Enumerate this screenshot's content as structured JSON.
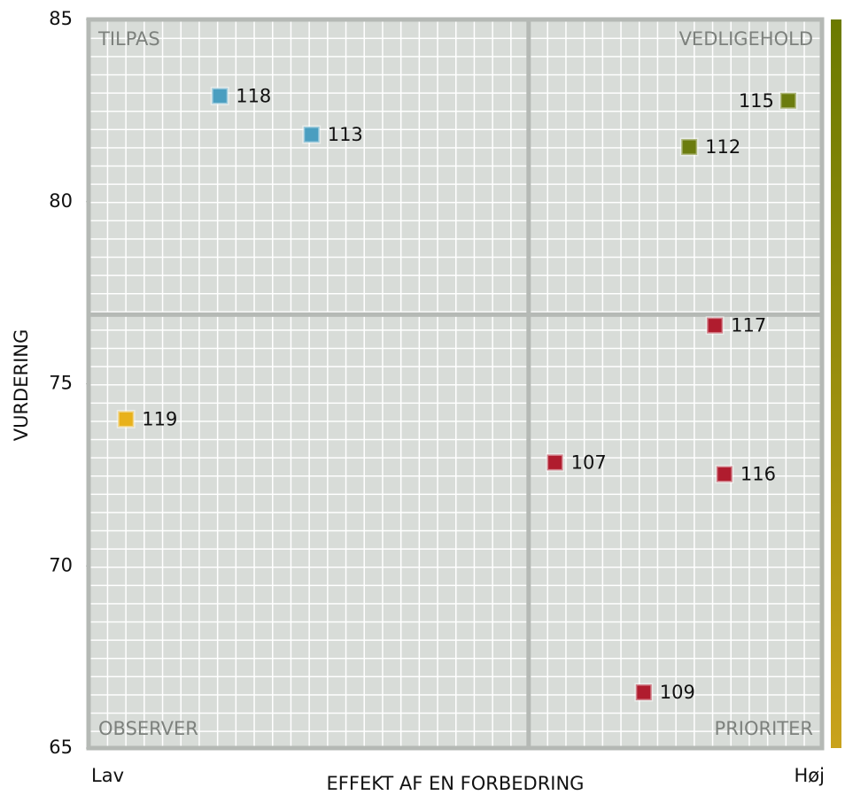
{
  "chart_data": {
    "type": "scatter",
    "xlabel": "EFFEKT AF EN FORBEDRING",
    "ylabel": "VURDERING",
    "x_end_labels": [
      "Lav",
      "Høj"
    ],
    "quadrant_labels": {
      "top_left": "TILPAS",
      "top_right": "VEDLIGEHOLD",
      "bottom_left": "OBSERVER",
      "bottom_right": "PRIORITER"
    },
    "xlim": [
      0,
      100
    ],
    "ylim": [
      65,
      85
    ],
    "yticks": [
      65,
      70,
      75,
      80,
      85
    ],
    "x_divider": 60,
    "y_divider": 76.9,
    "point_labels": [
      "118",
      "113",
      "115",
      "112",
      "117",
      "119",
      "107",
      "116",
      "109"
    ],
    "x": [
      17.9,
      30.4,
      95.4,
      81.9,
      85.4,
      5.1,
      63.6,
      86.7,
      75.7
    ],
    "values": [
      82.9,
      81.84,
      82.77,
      81.5,
      76.6,
      74.03,
      72.84,
      72.52,
      66.53
    ],
    "colors": [
      "#4a9ec0",
      "#4a9ec0",
      "#6b7c0e",
      "#6b7c0e",
      "#b01c2e",
      "#e8b11a",
      "#b01c2e",
      "#b01c2e",
      "#b01c2e"
    ],
    "colorbar": [
      "#6b7a00",
      "#c9a21c"
    ]
  }
}
